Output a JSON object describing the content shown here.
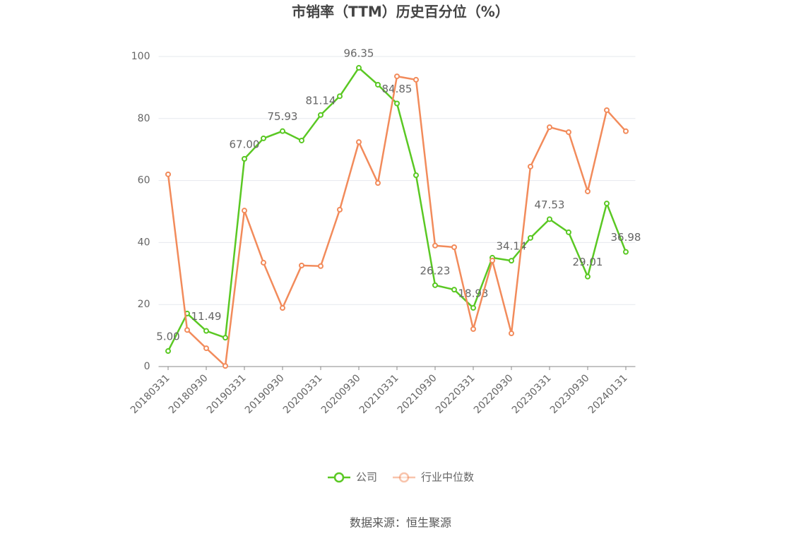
{
  "chart_data": {
    "type": "line",
    "title": "市销率（TTM）历史百分位（%）",
    "source": "数据来源：恒生聚源",
    "categories": [
      "20180331",
      null,
      "20180930",
      null,
      "20190331",
      null,
      "20190930",
      null,
      "20200331",
      null,
      "20200930",
      null,
      "20210331",
      null,
      "20210930",
      null,
      "20220331",
      null,
      "20220930",
      null,
      "20230331",
      null,
      "20230930",
      null,
      "20240131"
    ],
    "ylim": [
      0,
      100
    ],
    "yticks": [
      0,
      20,
      40,
      60,
      80,
      100
    ],
    "grid": true,
    "legend": "bottom",
    "series": [
      {
        "name": "公司",
        "color": "#5ac823",
        "values": [
          5.0,
          17.1,
          11.49,
          9.3,
          67.0,
          73.6,
          75.93,
          72.9,
          81.14,
          87.2,
          96.35,
          90.9,
          84.85,
          61.7,
          26.23,
          24.8,
          18.93,
          35.1,
          34.14,
          41.5,
          47.53,
          43.3,
          29.01,
          52.6,
          36.98
        ],
        "value_labels": [
          "5.00",
          null,
          "11.49",
          null,
          "67.00",
          null,
          "75.93",
          null,
          "81.14",
          null,
          "96.35",
          null,
          "84.85",
          null,
          "26.23",
          null,
          "18.93",
          null,
          "34.14",
          null,
          "47.53",
          null,
          "29.01",
          null,
          "36.98"
        ]
      },
      {
        "name": "行业中位数",
        "color": "#f28b5b",
        "values": [
          62.0,
          11.8,
          5.9,
          0.2,
          50.3,
          33.5,
          18.9,
          32.6,
          32.4,
          50.6,
          72.4,
          59.2,
          93.6,
          92.5,
          39.0,
          38.5,
          12.1,
          34.2,
          10.7,
          64.5,
          77.2,
          75.6,
          56.5,
          82.7,
          75.9
        ]
      }
    ]
  }
}
